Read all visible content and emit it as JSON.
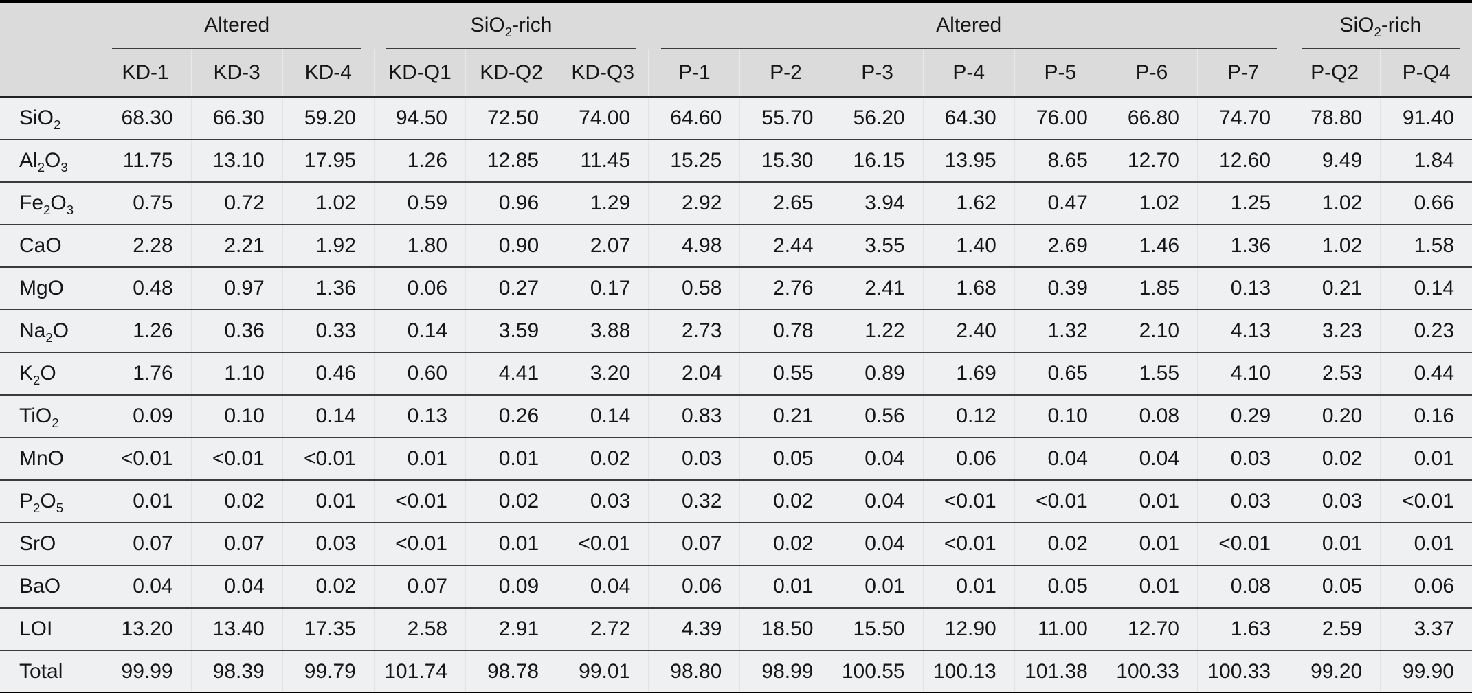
{
  "colors": {
    "header_bg": "#dbdbdb",
    "row_bg": "#eff0f1",
    "rule": "#3b3b3b",
    "heavy_rule": "#000000",
    "text": "#161616"
  },
  "table": {
    "groups": [
      {
        "label": "Altered",
        "span": 3
      },
      {
        "label": "SiO~2~-rich",
        "span": 3
      },
      {
        "label": "Altered",
        "span": 7
      },
      {
        "label": "SiO~2~-rich",
        "span": 2
      }
    ],
    "columns": [
      "KD-1",
      "KD-3",
      "KD-4",
      "KD-Q1",
      "KD-Q2",
      "KD-Q3",
      "P-1",
      "P-2",
      "P-3",
      "P-4",
      "P-5",
      "P-6",
      "P-7",
      "P-Q2",
      "P-Q4"
    ],
    "rows": [
      {
        "label": "SiO~2~",
        "values": [
          "68.30",
          "66.30",
          "59.20",
          "94.50",
          "72.50",
          "74.00",
          "64.60",
          "55.70",
          "56.20",
          "64.30",
          "76.00",
          "66.80",
          "74.70",
          "78.80",
          "91.40"
        ]
      },
      {
        "label": "Al~2~O~3~",
        "values": [
          "11.75",
          "13.10",
          "17.95",
          "1.26",
          "12.85",
          "11.45",
          "15.25",
          "15.30",
          "16.15",
          "13.95",
          "8.65",
          "12.70",
          "12.60",
          "9.49",
          "1.84"
        ]
      },
      {
        "label": "Fe~2~O~3~",
        "values": [
          "0.75",
          "0.72",
          "1.02",
          "0.59",
          "0.96",
          "1.29",
          "2.92",
          "2.65",
          "3.94",
          "1.62",
          "0.47",
          "1.02",
          "1.25",
          "1.02",
          "0.66"
        ]
      },
      {
        "label": "CaO",
        "values": [
          "2.28",
          "2.21",
          "1.92",
          "1.80",
          "0.90",
          "2.07",
          "4.98",
          "2.44",
          "3.55",
          "1.40",
          "2.69",
          "1.46",
          "1.36",
          "1.02",
          "1.58"
        ]
      },
      {
        "label": "MgO",
        "values": [
          "0.48",
          "0.97",
          "1.36",
          "0.06",
          "0.27",
          "0.17",
          "0.58",
          "2.76",
          "2.41",
          "1.68",
          "0.39",
          "1.85",
          "0.13",
          "0.21",
          "0.14"
        ]
      },
      {
        "label": "Na~2~O",
        "values": [
          "1.26",
          "0.36",
          "0.33",
          "0.14",
          "3.59",
          "3.88",
          "2.73",
          "0.78",
          "1.22",
          "2.40",
          "1.32",
          "2.10",
          "4.13",
          "3.23",
          "0.23"
        ]
      },
      {
        "label": "K~2~O",
        "values": [
          "1.76",
          "1.10",
          "0.46",
          "0.60",
          "4.41",
          "3.20",
          "2.04",
          "0.55",
          "0.89",
          "1.69",
          "0.65",
          "1.55",
          "4.10",
          "2.53",
          "0.44"
        ]
      },
      {
        "label": "TiO~2~",
        "values": [
          "0.09",
          "0.10",
          "0.14",
          "0.13",
          "0.26",
          "0.14",
          "0.83",
          "0.21",
          "0.56",
          "0.12",
          "0.10",
          "0.08",
          "0.29",
          "0.20",
          "0.16"
        ]
      },
      {
        "label": "MnO",
        "values": [
          "<0.01",
          "<0.01",
          "<0.01",
          "0.01",
          "0.01",
          "0.02",
          "0.03",
          "0.05",
          "0.04",
          "0.06",
          "0.04",
          "0.04",
          "0.03",
          "0.02",
          "0.01"
        ]
      },
      {
        "label": "P~2~O~5~",
        "values": [
          "0.01",
          "0.02",
          "0.01",
          "<0.01",
          "0.02",
          "0.03",
          "0.32",
          "0.02",
          "0.04",
          "<0.01",
          "<0.01",
          "0.01",
          "0.03",
          "0.03",
          "<0.01"
        ]
      },
      {
        "label": "SrO",
        "values": [
          "0.07",
          "0.07",
          "0.03",
          "<0.01",
          "0.01",
          "<0.01",
          "0.07",
          "0.02",
          "0.04",
          "<0.01",
          "0.02",
          "0.01",
          "<0.01",
          "0.01",
          "0.01"
        ]
      },
      {
        "label": "BaO",
        "values": [
          "0.04",
          "0.04",
          "0.02",
          "0.07",
          "0.09",
          "0.04",
          "0.06",
          "0.01",
          "0.01",
          "0.01",
          "0.05",
          "0.01",
          "0.08",
          "0.05",
          "0.06"
        ]
      },
      {
        "label": "LOI",
        "values": [
          "13.20",
          "13.40",
          "17.35",
          "2.58",
          "2.91",
          "2.72",
          "4.39",
          "18.50",
          "15.50",
          "12.90",
          "11.00",
          "12.70",
          "1.63",
          "2.59",
          "3.37"
        ]
      },
      {
        "label": "Total",
        "values": [
          "99.99",
          "98.39",
          "99.79",
          "101.74",
          "98.78",
          "99.01",
          "98.80",
          "98.99",
          "100.55",
          "100.13",
          "101.38",
          "100.33",
          "100.33",
          "99.20",
          "99.90"
        ]
      }
    ]
  }
}
